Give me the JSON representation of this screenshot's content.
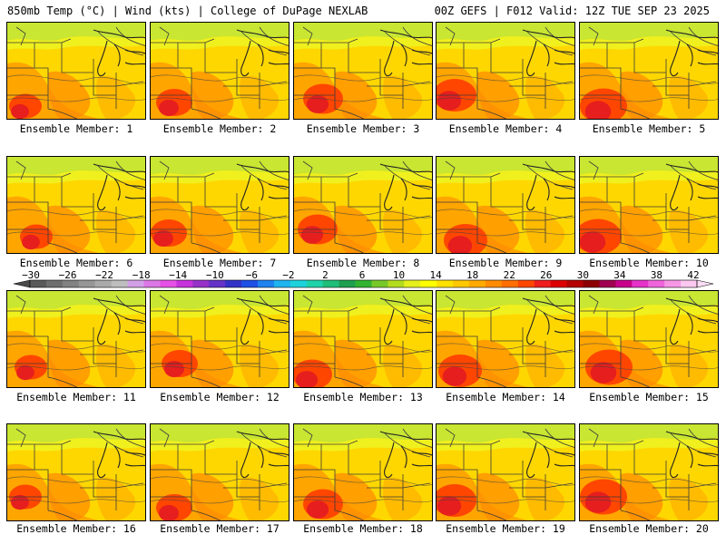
{
  "header": {
    "left": "850mb Temp (°C) | Wind (kts) | College of DuPage NEXLAB",
    "right": "00Z GEFS | F012 Valid: 12Z TUE SEP 23 2025"
  },
  "panels": [
    {
      "label": "Ensemble Member: 1"
    },
    {
      "label": "Ensemble Member: 2"
    },
    {
      "label": "Ensemble Member: 3"
    },
    {
      "label": "Ensemble Member: 4"
    },
    {
      "label": "Ensemble Member: 5"
    },
    {
      "label": "Ensemble Member: 6"
    },
    {
      "label": "Ensemble Member: 7"
    },
    {
      "label": "Ensemble Member: 8"
    },
    {
      "label": "Ensemble Member: 9"
    },
    {
      "label": "Ensemble Member: 10"
    },
    {
      "label": "Ensemble Member: 11"
    },
    {
      "label": "Ensemble Member: 12"
    },
    {
      "label": "Ensemble Member: 13"
    },
    {
      "label": "Ensemble Member: 14"
    },
    {
      "label": "Ensemble Member: 15"
    },
    {
      "label": "Ensemble Member: 16"
    },
    {
      "label": "Ensemble Member: 17"
    },
    {
      "label": "Ensemble Member: 18"
    },
    {
      "label": "Ensemble Member: 19"
    },
    {
      "label": "Ensemble Member: 20"
    }
  ],
  "colorbar": {
    "ticks": [
      "−30",
      "−26",
      "−22",
      "−18",
      "−14",
      "−10",
      "−6",
      "−2",
      "2",
      "6",
      "10",
      "14",
      "18",
      "22",
      "26",
      "30",
      "34",
      "38",
      "42"
    ],
    "colors": [
      "#5a5a5a",
      "#6e6e6e",
      "#828282",
      "#969696",
      "#aaaaaa",
      "#bebebe",
      "#d2a0e6",
      "#dc78e6",
      "#e650e6",
      "#c832dc",
      "#9632c8",
      "#6432c8",
      "#3232c8",
      "#1e50e6",
      "#1e82f0",
      "#1eb4f0",
      "#1ed2dc",
      "#1ed2aa",
      "#1ebe78",
      "#1ea050",
      "#32b432",
      "#78c828",
      "#b4dc1e",
      "#e6f01e",
      "#ffff00",
      "#ffe100",
      "#ffc800",
      "#ffaa00",
      "#ff8c00",
      "#ff6e00",
      "#ff4600",
      "#f01e1e",
      "#dc0000",
      "#b40000",
      "#8c0000",
      "#a00050",
      "#c8008c",
      "#e632c8",
      "#f064dc",
      "#f896e6",
      "#fcc8f0"
    ]
  }
}
